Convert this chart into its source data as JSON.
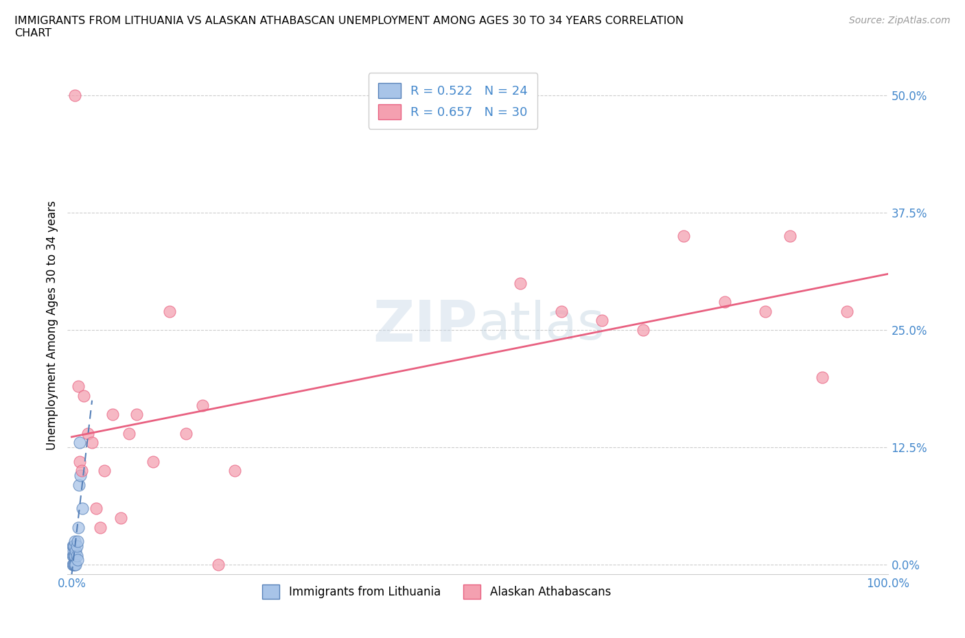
{
  "title": "IMMIGRANTS FROM LITHUANIA VS ALASKAN ATHABASCAN UNEMPLOYMENT AMONG AGES 30 TO 34 YEARS CORRELATION\nCHART",
  "source": "Source: ZipAtlas.com",
  "xlabel_label": "Immigrants from Lithuania",
  "xlabel2_label": "Alaskan Athabascans",
  "ylabel": "Unemployment Among Ages 30 to 34 years",
  "xlim": [
    -0.005,
    1.0
  ],
  "ylim": [
    -0.01,
    0.52
  ],
  "xticks": [
    0.0,
    0.25,
    0.5,
    0.75,
    1.0
  ],
  "xtick_labels": [
    "0.0%",
    "",
    "",
    "",
    "100.0%"
  ],
  "yticks": [
    0.0,
    0.125,
    0.25,
    0.375,
    0.5
  ],
  "ytick_labels": [
    "0.0%",
    "12.5%",
    "25.0%",
    "37.5%",
    "50.0%"
  ],
  "lithuania_color": "#a8c4e8",
  "athabascan_color": "#f4a0b0",
  "lithuania_line_color": "#5580b8",
  "athabascan_line_color": "#e86080",
  "R_lithuania": 0.522,
  "N_lithuania": 24,
  "R_athabascan": 0.657,
  "N_athabascan": 30,
  "watermark": "ZIPatlas",
  "lithuania_x": [
    0.001,
    0.001,
    0.001,
    0.002,
    0.002,
    0.002,
    0.002,
    0.003,
    0.003,
    0.003,
    0.004,
    0.004,
    0.004,
    0.005,
    0.005,
    0.006,
    0.006,
    0.007,
    0.007,
    0.008,
    0.009,
    0.01,
    0.011,
    0.013
  ],
  "lithuania_y": [
    0.0,
    0.01,
    0.02,
    0.0,
    0.01,
    0.015,
    0.02,
    0.0,
    0.01,
    0.02,
    0.0,
    0.01,
    0.025,
    0.0,
    0.015,
    0.01,
    0.02,
    0.005,
    0.025,
    0.04,
    0.085,
    0.13,
    0.095,
    0.06
  ],
  "athabascan_x": [
    0.004,
    0.008,
    0.01,
    0.012,
    0.015,
    0.02,
    0.025,
    0.03,
    0.035,
    0.04,
    0.05,
    0.06,
    0.07,
    0.08,
    0.1,
    0.12,
    0.14,
    0.16,
    0.18,
    0.2,
    0.55,
    0.6,
    0.65,
    0.7,
    0.75,
    0.8,
    0.85,
    0.88,
    0.92,
    0.95
  ],
  "athabascan_y": [
    0.5,
    0.19,
    0.11,
    0.1,
    0.18,
    0.14,
    0.13,
    0.06,
    0.04,
    0.1,
    0.16,
    0.05,
    0.14,
    0.16,
    0.11,
    0.27,
    0.14,
    0.17,
    0.0,
    0.1,
    0.3,
    0.27,
    0.26,
    0.25,
    0.35,
    0.28,
    0.27,
    0.35,
    0.2,
    0.27
  ]
}
